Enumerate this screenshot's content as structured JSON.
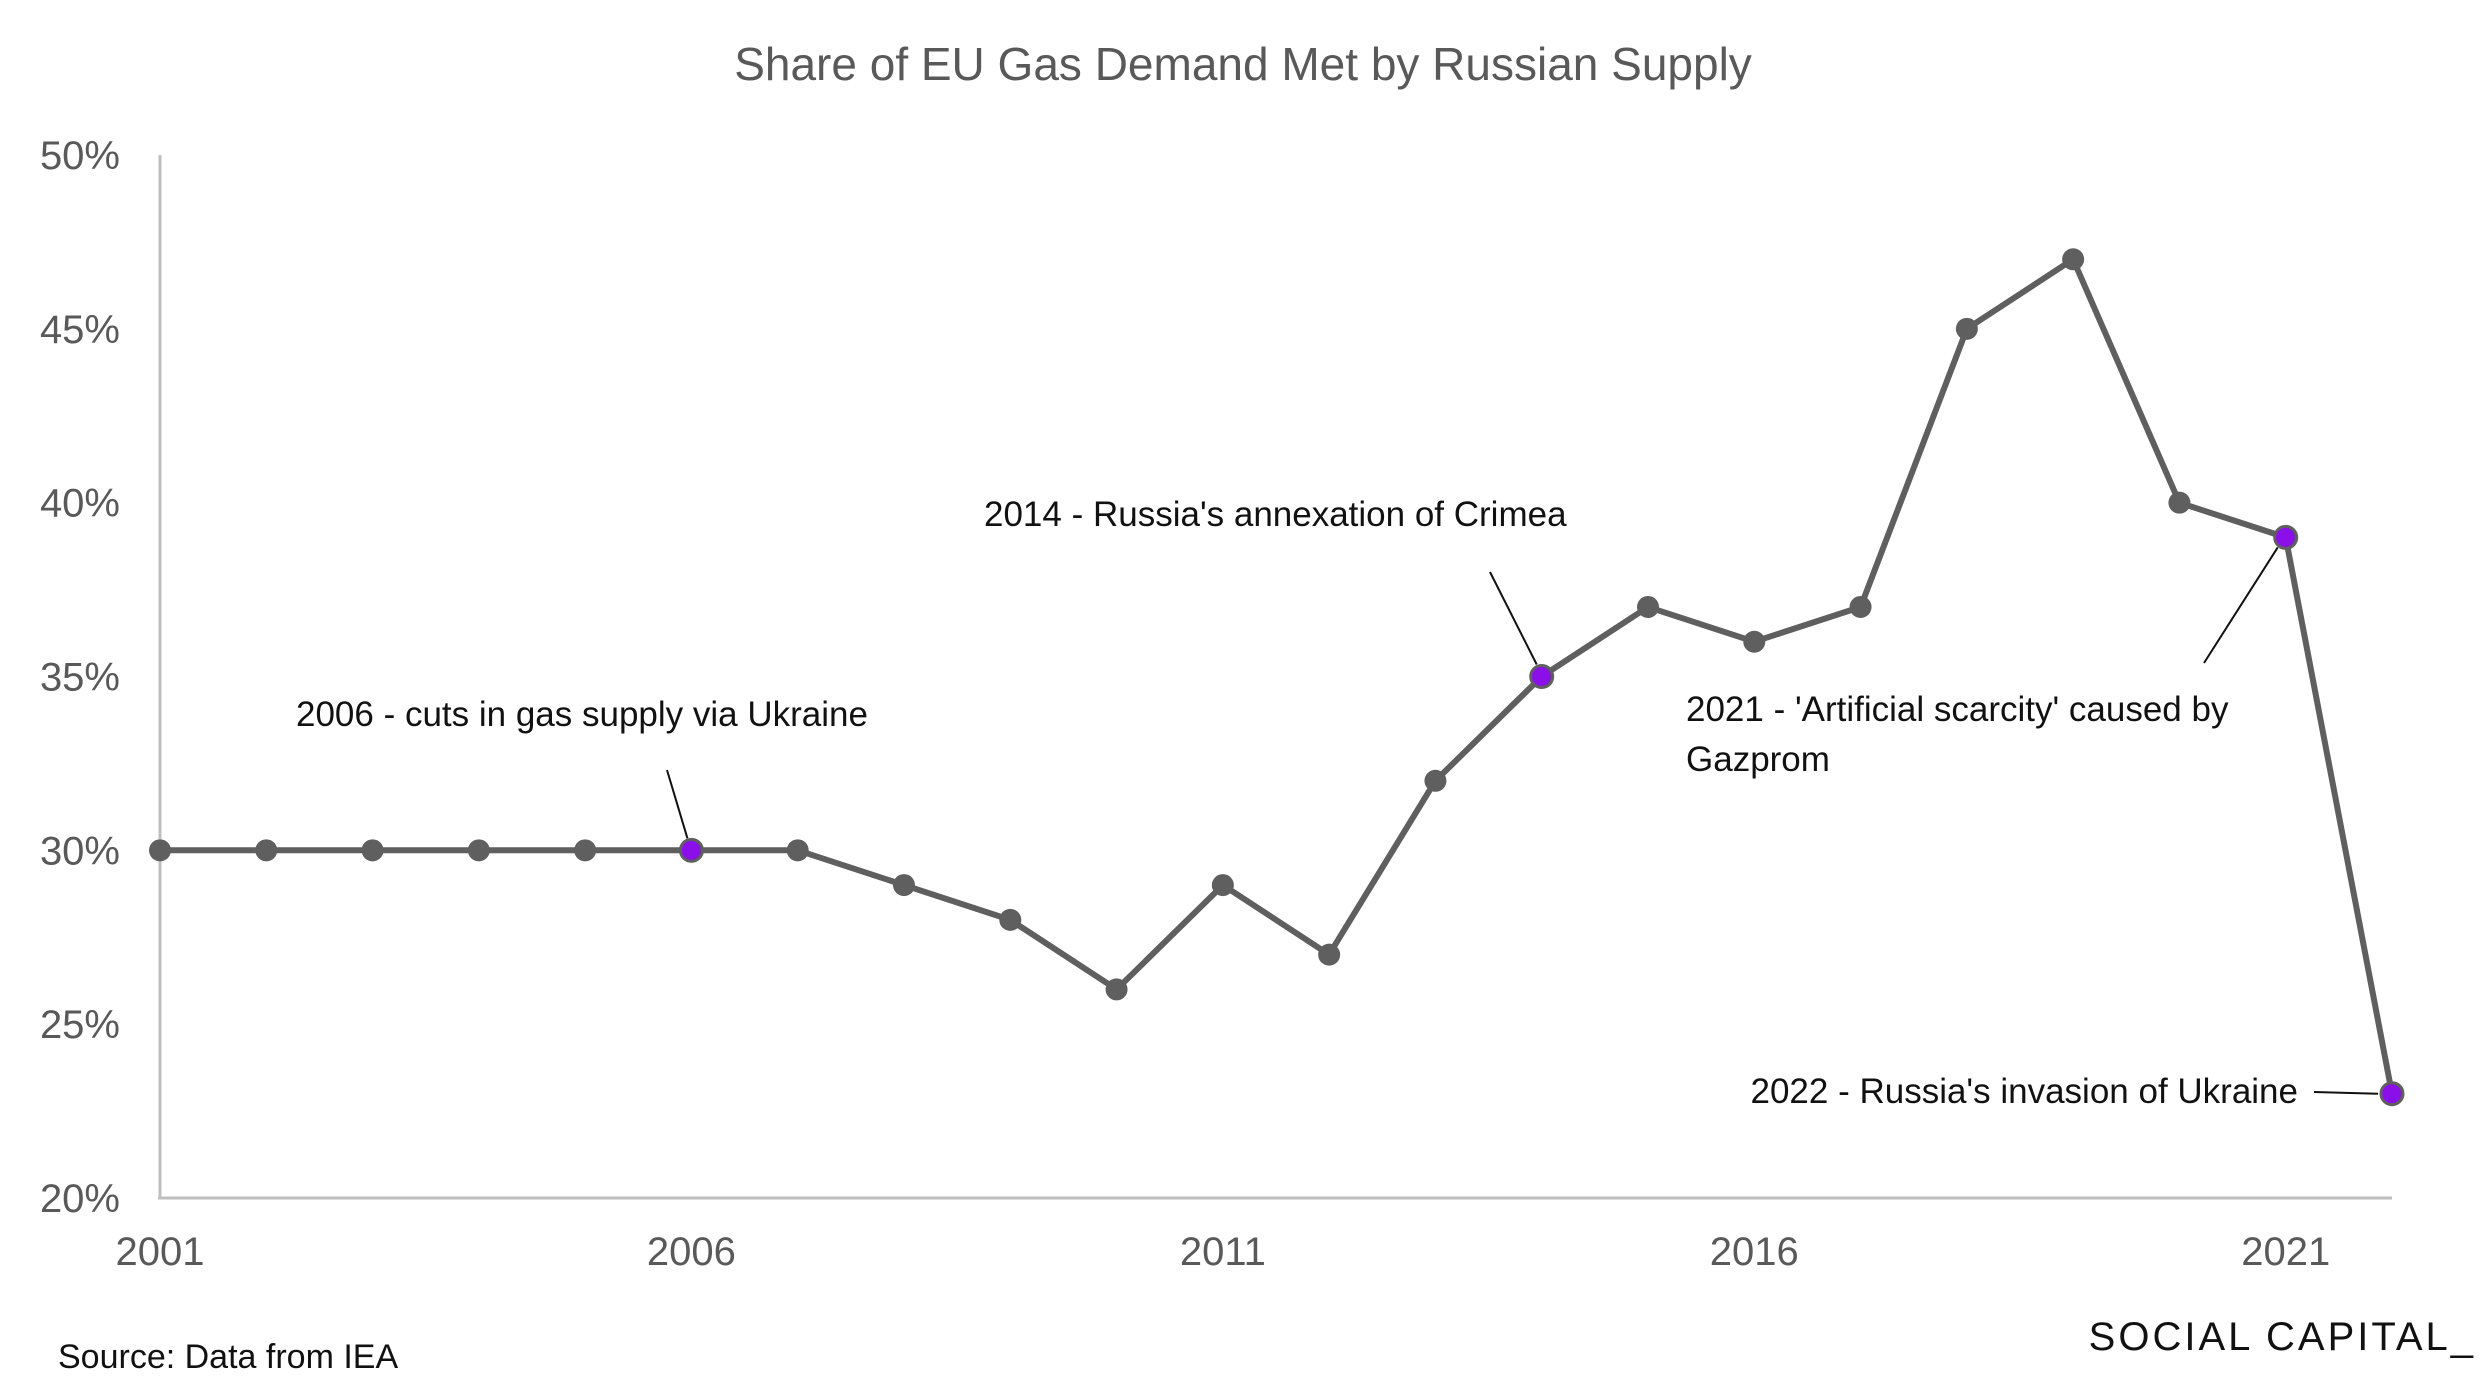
{
  "chart_data": {
    "type": "line",
    "title": "Share of EU Gas Demand Met by Russian Supply",
    "xlabel": "",
    "ylabel": "",
    "x": [
      2001,
      2002,
      2003,
      2004,
      2005,
      2006,
      2007,
      2008,
      2009,
      2010,
      2011,
      2012,
      2013,
      2014,
      2015,
      2016,
      2017,
      2018,
      2019,
      2020,
      2021,
      2022
    ],
    "series": [
      {
        "values": [
          30,
          30,
          30,
          30,
          30,
          30,
          30,
          29,
          28,
          26,
          29,
          27,
          32,
          35,
          37,
          36,
          37,
          45,
          47,
          40,
          39,
          23
        ]
      }
    ],
    "xlim": [
      2001,
      2022
    ],
    "ylim": [
      20,
      50
    ],
    "x_ticks": [
      2001,
      2006,
      2011,
      2016,
      2021
    ],
    "x_tick_labels": [
      "2001",
      "2006",
      "2011",
      "2016",
      "2021"
    ],
    "y_ticks": [
      20,
      25,
      30,
      35,
      40,
      45,
      50
    ],
    "y_tick_labels": [
      "20%",
      "25%",
      "30%",
      "35%",
      "40%",
      "45%",
      "50%"
    ],
    "grid": false,
    "line_color": "#5f5f5f",
    "highlight_color": "#8a0fe8",
    "highlight_years": [
      2006,
      2014,
      2021,
      2022
    ],
    "annotations": [
      {
        "year": 2006,
        "lines": [
          "2006 - cuts in gas supply via Ukraine"
        ]
      },
      {
        "year": 2014,
        "lines": [
          "2014 - Russia's annexation of Crimea"
        ]
      },
      {
        "year": 2021,
        "lines": [
          "2021 - 'Artificial scarcity' caused by",
          "Gazprom"
        ]
      },
      {
        "year": 2022,
        "lines": [
          "2022 - Russia's invasion of Ukraine"
        ]
      }
    ]
  },
  "footer": {
    "source": "Source: Data from IEA",
    "brand": "SOCIAL CAPITAL_"
  }
}
